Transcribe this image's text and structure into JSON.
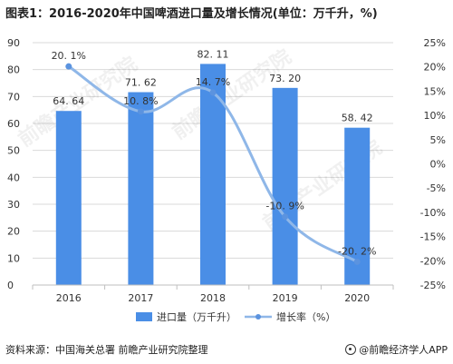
{
  "title": "图表1：2016-2020年中国啤酒进口量及增长情况(单位：万千升，%)",
  "source": "资料来源：中国海关总署 前瞻产业研究院整理",
  "brand": "@前瞻经济学人APP",
  "watermark": "前瞻产业研究院",
  "colors": {
    "bar": "#4a8ee6",
    "line": "#8fb7e8",
    "marker": "#5b93df",
    "grid": "#d9d9d9"
  },
  "chart_data": {
    "type": "bar",
    "categories": [
      "2016",
      "2017",
      "2018",
      "2019",
      "2020"
    ],
    "series": [
      {
        "name": "进口量（万千升）",
        "kind": "bar",
        "axis": "left",
        "values": [
          64.64,
          71.62,
          82.11,
          73.2,
          58.42
        ],
        "labels": [
          "64. 64",
          "71. 62",
          "82. 11",
          "73. 20",
          "58. 42"
        ]
      },
      {
        "name": "增长率（%）",
        "kind": "line",
        "axis": "right",
        "values": [
          20.1,
          10.8,
          14.7,
          -10.9,
          -20.2
        ],
        "labels": [
          "20. 1%",
          "10. 8%",
          "14. 7%",
          "-10. 9%",
          "-20. 2%"
        ]
      }
    ],
    "y_left": {
      "lim": [
        0,
        90
      ],
      "ticks": [
        0,
        10,
        20,
        30,
        40,
        50,
        60,
        70,
        80,
        90
      ],
      "tick_labels": [
        "0",
        "10",
        "20",
        "30",
        "40",
        "50",
        "60",
        "70",
        "80",
        "90"
      ]
    },
    "y_right": {
      "lim": [
        -25,
        25
      ],
      "ticks": [
        -25,
        -20,
        -15,
        -10,
        -5,
        0,
        5,
        10,
        15,
        20,
        25
      ],
      "tick_labels": [
        "-25%",
        "-20%",
        "-15%",
        "-10%",
        "-5%",
        "0%",
        "5%",
        "10%",
        "15%",
        "20%",
        "25%"
      ]
    },
    "grid": true,
    "legend": "bottom"
  }
}
